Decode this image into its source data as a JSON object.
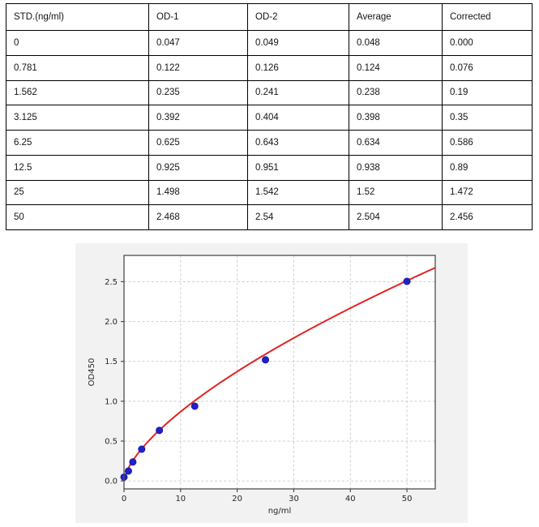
{
  "table": {
    "columns": [
      "STD.(ng/ml)",
      "OD-1",
      "OD-2",
      "Average",
      "Corrected"
    ],
    "rows": [
      [
        "0",
        "0.047",
        "0.049",
        "0.048",
        "0.000"
      ],
      [
        "0.781",
        "0.122",
        "0.126",
        "0.124",
        "0.076"
      ],
      [
        "1.562",
        "0.235",
        "0.241",
        "0.238",
        "0.19"
      ],
      [
        "3.125",
        "0.392",
        "0.404",
        "0.398",
        "0.35"
      ],
      [
        "6.25",
        "0.625",
        "0.643",
        "0.634",
        "0.586"
      ],
      [
        "12.5",
        "0.925",
        "0.951",
        "0.938",
        "0.89"
      ],
      [
        "25",
        "1.498",
        "1.542",
        "1.52",
        "1.472"
      ],
      [
        "50",
        "2.468",
        "2.54",
        "2.504",
        "2.456"
      ]
    ]
  },
  "chart_data": {
    "type": "scatter",
    "title": "",
    "xlabel": "ng/ml",
    "ylabel": "OD450",
    "xlim": [
      0,
      55
    ],
    "ylim": [
      -0.1,
      2.83
    ],
    "xticks": [
      0,
      10,
      20,
      30,
      40,
      50
    ],
    "xtick_labels": [
      "0",
      "10",
      "20",
      "30",
      "40",
      "50"
    ],
    "yticks": [
      0.0,
      0.5,
      1.0,
      1.5,
      2.0,
      2.5
    ],
    "ytick_labels": [
      "0.0",
      "0.5",
      "1.0",
      "1.5",
      "2.0",
      "2.5"
    ],
    "grid": true,
    "legend": null,
    "points": {
      "x": [
        0,
        0.781,
        1.562,
        3.125,
        6.25,
        12.5,
        25,
        50
      ],
      "y": [
        0.048,
        0.124,
        0.238,
        0.398,
        0.634,
        0.938,
        1.52,
        2.504
      ]
    },
    "fit_curve": {
      "type": "power",
      "formula": "y = a * x^b",
      "a": 0.19,
      "b": 0.66,
      "x_range": [
        0.05,
        55
      ]
    },
    "colors": {
      "figure_bg": "#f2f2f2",
      "plot_bg": "#ffffff",
      "spine": "#4d4d4d",
      "grid": "#cacaca",
      "curve": "#e02424",
      "point_fill": "#2020cc",
      "point_edge": "#15159e",
      "tick_text": "#262626"
    }
  }
}
